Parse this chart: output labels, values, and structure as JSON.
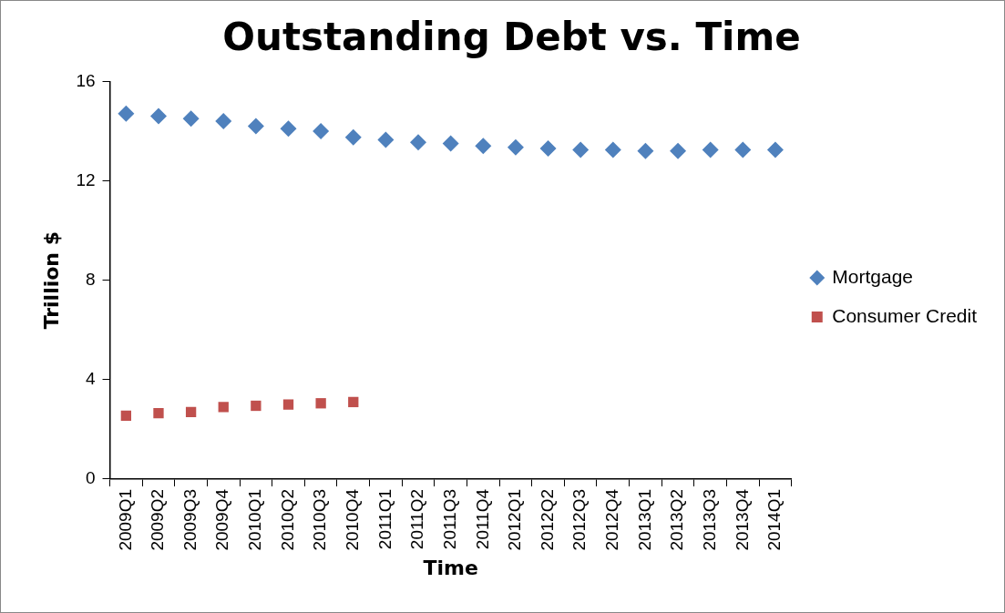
{
  "chart_data": {
    "type": "scatter",
    "title": "Outstanding Debt vs. Time",
    "xlabel": "Time",
    "ylabel": "Trillion $",
    "categories": [
      "2009Q1",
      "2009Q2",
      "2009Q3",
      "2009Q4",
      "2010Q1",
      "2010Q2",
      "2010Q3",
      "2010Q4",
      "2011Q1",
      "2011Q2",
      "2011Q3",
      "2011Q4",
      "2012Q1",
      "2012Q2",
      "2012Q3",
      "2012Q4",
      "2013Q1",
      "2013Q2",
      "2013Q3",
      "2013Q4",
      "2014Q1"
    ],
    "series": [
      {
        "name": "Mortgage",
        "color": "#4f81bd",
        "marker": "diamond",
        "values": [
          14.7,
          14.6,
          14.5,
          14.4,
          14.2,
          14.1,
          14.0,
          13.75,
          13.65,
          13.55,
          13.5,
          13.4,
          13.35,
          13.3,
          13.25,
          13.25,
          13.2,
          13.2,
          13.25,
          13.25,
          13.25
        ]
      },
      {
        "name": "Consumer Credit",
        "color": "#c0504d",
        "marker": "square",
        "values": [
          2.55,
          2.65,
          2.7,
          2.9,
          2.95,
          3.0,
          3.05,
          3.1,
          null,
          null,
          null,
          null,
          null,
          null,
          null,
          null,
          null,
          null,
          null,
          null,
          null
        ]
      }
    ],
    "ylim": [
      0,
      16
    ],
    "yticks": [
      0,
      4,
      8,
      12,
      16
    ],
    "grid": false,
    "legend": "right"
  }
}
